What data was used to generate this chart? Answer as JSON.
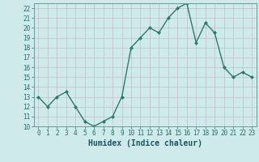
{
  "x": [
    0,
    1,
    2,
    3,
    4,
    5,
    6,
    7,
    8,
    9,
    10,
    11,
    12,
    13,
    14,
    15,
    16,
    17,
    18,
    19,
    20,
    21,
    22,
    23
  ],
  "y": [
    13,
    12,
    13,
    13.5,
    12,
    10.5,
    10,
    10.5,
    11,
    13,
    18,
    19,
    20,
    19.5,
    21,
    22,
    22.5,
    18.5,
    20.5,
    19.5,
    16,
    15,
    15.5,
    15
  ],
  "line_color": "#2d7a6a",
  "marker_color": "#2d7a6a",
  "bg_plot": "#ceeaea",
  "bg_fig": "#ceeaea",
  "grid_color_major": "#b8d4d4",
  "grid_color_minor": "#c8dede",
  "xlabel": "Humidex (Indice chaleur)",
  "ylim": [
    10,
    22.5
  ],
  "xlim": [
    -0.5,
    23.5
  ],
  "yticks": [
    10,
    11,
    12,
    13,
    14,
    15,
    16,
    17,
    18,
    19,
    20,
    21,
    22
  ],
  "xticks": [
    0,
    1,
    2,
    3,
    4,
    5,
    6,
    7,
    8,
    9,
    10,
    11,
    12,
    13,
    14,
    15,
    16,
    17,
    18,
    19,
    20,
    21,
    22,
    23
  ],
  "tick_fontsize": 5.5,
  "xlabel_fontsize": 7,
  "marker_size": 2.0,
  "line_width": 1.0
}
